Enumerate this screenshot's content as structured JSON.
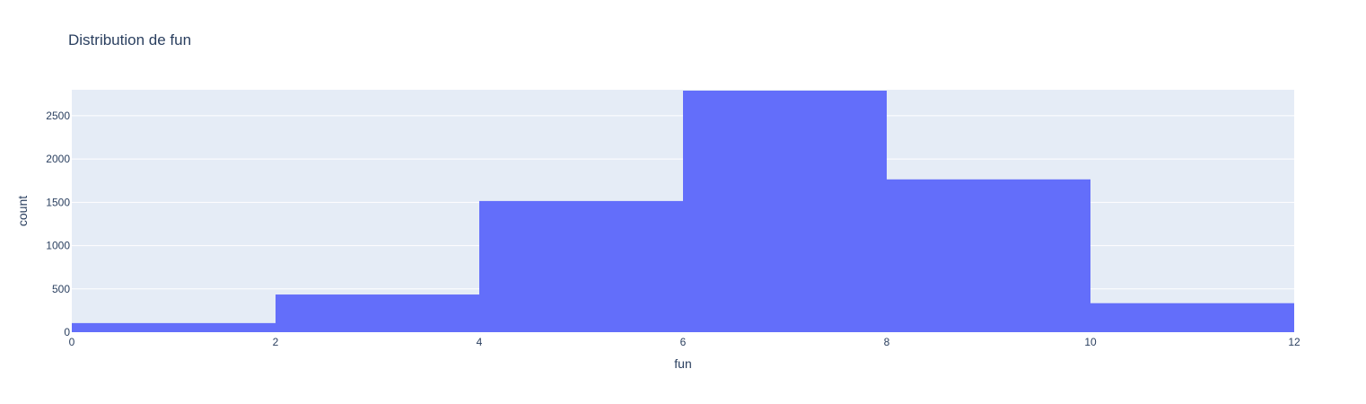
{
  "chart_data": {
    "type": "bar",
    "title": "Distribution de fun",
    "xlabel": "fun",
    "ylabel": "count",
    "bins": [
      {
        "x0": 0,
        "x1": 2,
        "count": 105
      },
      {
        "x0": 2,
        "x1": 4,
        "count": 435
      },
      {
        "x0": 4,
        "x1": 6,
        "count": 1515
      },
      {
        "x0": 6,
        "x1": 8,
        "count": 2790
      },
      {
        "x0": 8,
        "x1": 10,
        "count": 1765
      },
      {
        "x0": 10,
        "x1": 12,
        "count": 335
      }
    ],
    "xlim": [
      0,
      12
    ],
    "ylim": [
      0,
      2800
    ],
    "x_ticks": [
      0,
      2,
      4,
      6,
      8,
      10,
      12
    ],
    "y_ticks": [
      0,
      500,
      1000,
      1500,
      2000,
      2500
    ],
    "grid": true,
    "colors": {
      "bar": "#636efa",
      "plot_background": "#e5ecf6",
      "gridline": "#ffffff",
      "text": "#2a3f5f"
    }
  }
}
